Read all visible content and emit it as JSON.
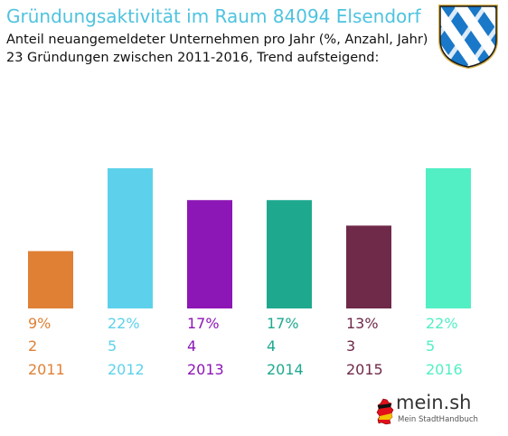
{
  "header": {
    "title": "Gründungsaktivität im Raum 84094 Elsendorf",
    "subtitle_line1": "Anteil neuangemeldeter Unternehmen pro Jahr (%, Anzahl, Jahr)",
    "subtitle_line2": "23 Gründungen zwischen 2011-2016, Trend aufsteigend:"
  },
  "crest_icon": "bavarian-lozenge-crest-icon",
  "brand": {
    "name": "mein.sh",
    "tagline": "Mein StadtHandbuch",
    "icon": "germany-map-icon"
  },
  "chart_data": {
    "type": "bar",
    "categories": [
      "2011",
      "2012",
      "2013",
      "2014",
      "2015",
      "2016"
    ],
    "series": [
      {
        "values": [
          9,
          22,
          17,
          17,
          13,
          22
        ],
        "labels": [
          "9%",
          "22%",
          "17%",
          "17%",
          "13%",
          "22%"
        ]
      },
      {
        "values": [
          2,
          5,
          4,
          4,
          3,
          5
        ]
      }
    ],
    "colors": [
      "#e08035",
      "#5dd1eb",
      "#8d16b6",
      "#1ea98f",
      "#6f2949",
      "#52efc4"
    ],
    "ylim": [
      0,
      22
    ],
    "grid": false,
    "legend": "none"
  }
}
